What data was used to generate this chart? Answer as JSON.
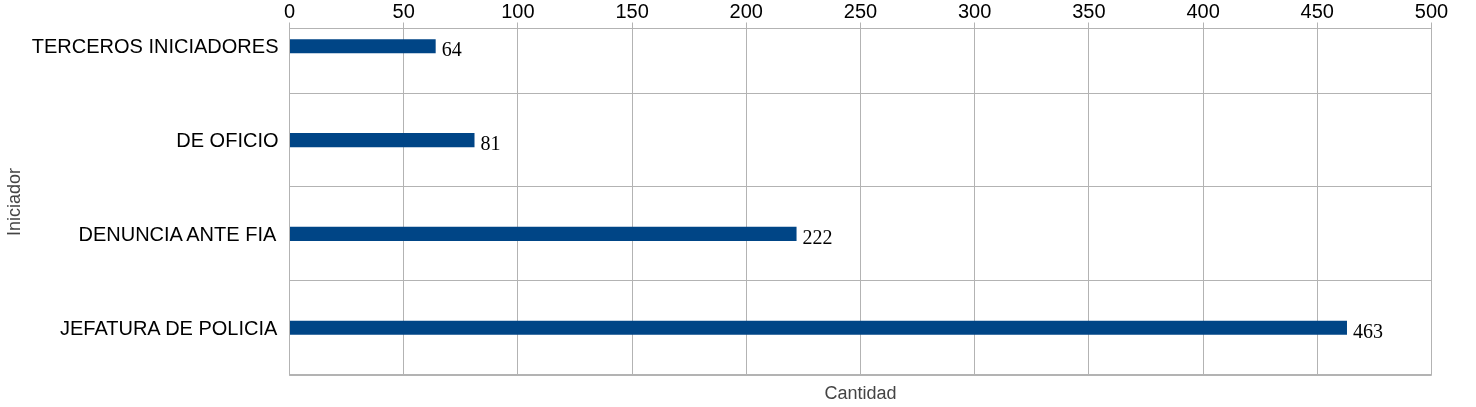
{
  "chart_data": {
    "type": "bar",
    "orientation": "horizontal",
    "xlabel": "Cantidad",
    "ylabel": "Iniciador",
    "categories": [
      "TERCEROS INICIADORES",
      "DE OFICIO",
      "DENUNCIA ANTE FIA",
      "JEFATURA DE POLICIA"
    ],
    "values": [
      64,
      81,
      222,
      463
    ],
    "color": "#004586",
    "xlim": [
      0,
      500
    ],
    "xticks": [
      0,
      50,
      100,
      150,
      200,
      250,
      300,
      350,
      400,
      450,
      500
    ],
    "grid": true,
    "data_labels": true
  }
}
